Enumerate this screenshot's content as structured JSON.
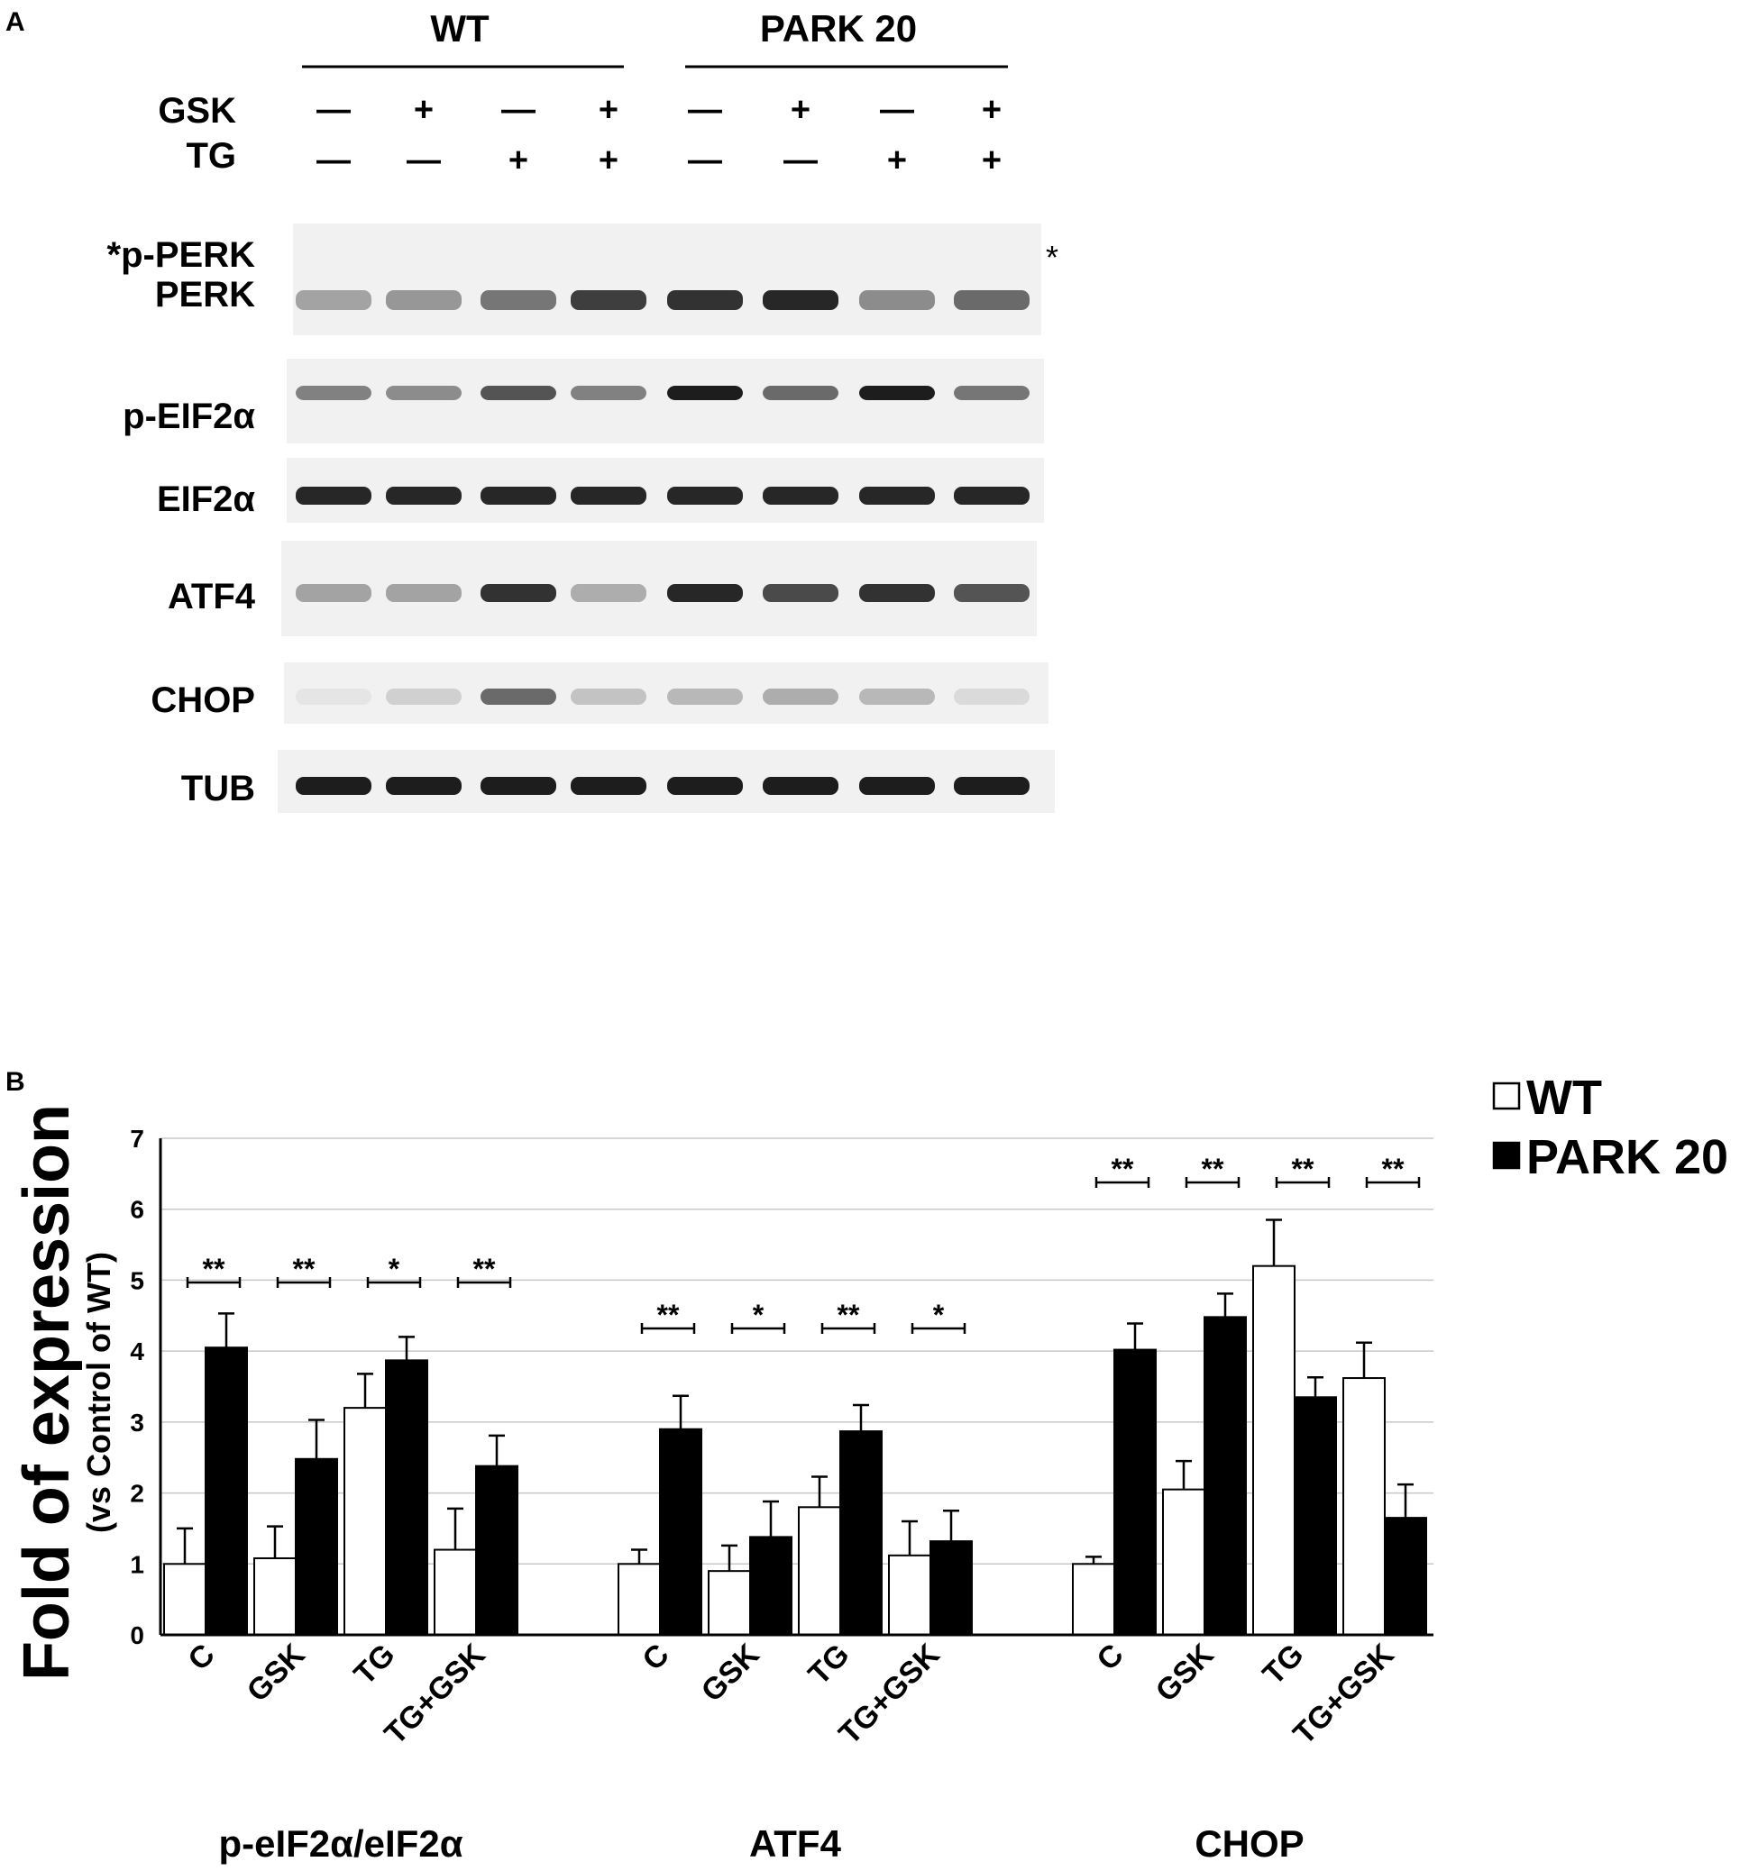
{
  "panel_a": {
    "label": "A",
    "groups": [
      {
        "name": "WT"
      },
      {
        "name": "PARK 20"
      }
    ],
    "treatments": [
      {
        "name": "GSK",
        "signs": [
          "—",
          "+",
          "—",
          "+",
          "—",
          "+",
          "—",
          "+"
        ]
      },
      {
        "name": "TG",
        "signs": [
          "—",
          "—",
          "+",
          "+",
          "—",
          "—",
          "+",
          "+"
        ]
      }
    ],
    "blots": [
      {
        "label": "*p-PERK",
        "label2": "PERK",
        "side_mark": "*",
        "bands": [
          0.35,
          0.4,
          0.55,
          0.8,
          0.85,
          0.9,
          0.45,
          0.6
        ]
      },
      {
        "label": "p-EIF2α",
        "bands": [
          0.5,
          0.45,
          0.7,
          0.5,
          0.95,
          0.6,
          0.95,
          0.55
        ]
      },
      {
        "label": "EIF2α",
        "bands": [
          0.9,
          0.9,
          0.9,
          0.9,
          0.9,
          0.9,
          0.9,
          0.9
        ]
      },
      {
        "label": "ATF4",
        "bands": [
          0.35,
          0.35,
          0.85,
          0.3,
          0.9,
          0.75,
          0.85,
          0.7
        ]
      },
      {
        "label": "CHOP",
        "bands": [
          0.05,
          0.15,
          0.6,
          0.2,
          0.25,
          0.3,
          0.25,
          0.1
        ]
      },
      {
        "label": "TUB",
        "bands": [
          0.95,
          0.95,
          0.95,
          0.95,
          0.95,
          0.95,
          0.95,
          0.95
        ]
      }
    ]
  },
  "chart_data": {
    "type": "bar",
    "panel_label": "B",
    "ylabel": "Fold of expression",
    "ylabel_sub": "(vs Control of WT)",
    "ylim": [
      0,
      7
    ],
    "yticks": [
      0,
      1,
      2,
      3,
      4,
      5,
      6,
      7
    ],
    "grid": true,
    "legend_position": "top-right",
    "colors": {
      "WT": "#ffffff",
      "PARK 20": "#000000",
      "edge": "#000000",
      "grid": "#c8c8c8"
    },
    "legend": [
      {
        "name": "WT",
        "fill": "#ffffff"
      },
      {
        "name": "PARK 20",
        "fill": "#000000"
      }
    ],
    "groups": [
      {
        "name": "p-eIF2α/eIF2α",
        "categories": [
          "C",
          "GSK",
          "TG",
          "TG+GSK"
        ],
        "series": [
          {
            "name": "WT",
            "values": [
              1.0,
              1.08,
              3.2,
              1.2
            ],
            "errors": [
              0.5,
              0.45,
              0.48,
              0.58
            ]
          },
          {
            "name": "PARK 20",
            "values": [
              4.05,
              2.48,
              3.87,
              2.38
            ],
            "errors": [
              0.48,
              0.55,
              0.33,
              0.43
            ]
          }
        ],
        "significance": [
          "**",
          "**",
          "*",
          "**"
        ]
      },
      {
        "name": "ATF4",
        "categories": [
          "C",
          "GSK",
          "TG",
          "TG+GSK"
        ],
        "series": [
          {
            "name": "WT",
            "values": [
              1.0,
              0.9,
              1.8,
              1.12
            ],
            "errors": [
              0.2,
              0.36,
              0.43,
              0.48
            ]
          },
          {
            "name": "PARK 20",
            "values": [
              2.9,
              1.38,
              2.87,
              1.32
            ],
            "errors": [
              0.47,
              0.5,
              0.37,
              0.43
            ]
          }
        ],
        "significance": [
          "**",
          "*",
          "**",
          "*"
        ]
      },
      {
        "name": "CHOP",
        "categories": [
          "C",
          "GSK",
          "TG",
          "TG+GSK"
        ],
        "series": [
          {
            "name": "WT",
            "values": [
              1.0,
              2.05,
              5.2,
              3.62
            ],
            "errors": [
              0.1,
              0.4,
              0.65,
              0.5
            ]
          },
          {
            "name": "PARK 20",
            "values": [
              4.02,
              4.48,
              3.35,
              1.65
            ],
            "errors": [
              0.37,
              0.33,
              0.28,
              0.47
            ]
          }
        ],
        "significance": [
          "**",
          "**",
          "**",
          "**"
        ]
      }
    ]
  }
}
